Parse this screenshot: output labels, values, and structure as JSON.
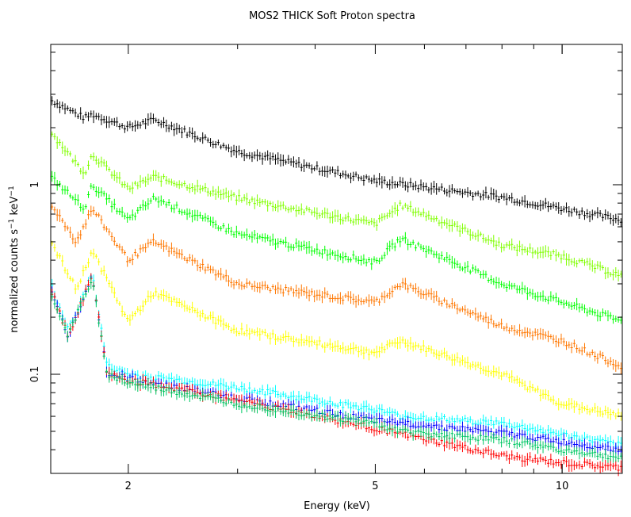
{
  "chart_data": {
    "type": "scatter",
    "title": "MOS2 THICK Soft Proton spectra",
    "xlabel": "Energy (keV)",
    "ylabel": "normalized counts s",
    "ylabel_sup1": "−1",
    "ylabel_mid": " keV",
    "ylabel_sup2": "−1",
    "x_scale": "log",
    "y_scale": "log",
    "xlim": [
      1.5,
      12.5
    ],
    "ylim": [
      0.03,
      5.5
    ],
    "x_ticks": [
      2,
      5,
      10
    ],
    "x_tick_labels": [
      "2",
      "5",
      "10"
    ],
    "y_ticks": [
      0.1,
      1
    ],
    "y_tick_labels": [
      "0.1",
      "1"
    ],
    "grid": false,
    "series": [
      {
        "color": "#000000",
        "x": [
          1.5,
          1.7,
          1.75,
          2.0,
          2.2,
          3.0,
          5.0,
          8.0,
          10.0,
          12.5
        ],
        "y": [
          2.8,
          2.25,
          2.35,
          2.0,
          2.2,
          1.5,
          1.05,
          0.86,
          0.75,
          0.65
        ]
      },
      {
        "color": "#80ff00",
        "x": [
          1.5,
          1.7,
          1.75,
          2.0,
          2.2,
          3.0,
          5.0,
          5.5,
          8.0,
          10.0,
          12.5
        ],
        "y": [
          1.9,
          1.15,
          1.45,
          0.95,
          1.1,
          0.85,
          0.62,
          0.78,
          0.48,
          0.42,
          0.33
        ]
      },
      {
        "color": "#00ff00",
        "x": [
          1.5,
          1.7,
          1.75,
          2.0,
          2.2,
          3.0,
          5.0,
          5.5,
          8.0,
          10.0,
          12.5
        ],
        "y": [
          1.1,
          0.75,
          1.0,
          0.65,
          0.85,
          0.55,
          0.39,
          0.52,
          0.3,
          0.24,
          0.19
        ]
      },
      {
        "color": "#ff7700",
        "x": [
          1.5,
          1.65,
          1.75,
          2.0,
          2.2,
          3.0,
          5.0,
          5.5,
          8.0,
          10.0,
          12.5
        ],
        "y": [
          0.8,
          0.5,
          0.75,
          0.4,
          0.5,
          0.3,
          0.24,
          0.3,
          0.18,
          0.15,
          0.11
        ]
      },
      {
        "color": "#ffff00",
        "x": [
          1.5,
          1.65,
          1.75,
          2.0,
          2.2,
          3.0,
          5.0,
          5.5,
          8.0,
          10.0,
          12.5
        ],
        "y": [
          0.5,
          0.28,
          0.45,
          0.19,
          0.27,
          0.17,
          0.13,
          0.15,
          0.1,
          0.07,
          0.06
        ]
      },
      {
        "color": "#00ffff",
        "x": [
          1.5,
          1.6,
          1.75,
          1.85,
          2.0,
          3.0,
          5.0,
          5.5,
          8.0,
          10.0,
          12.5
        ],
        "y": [
          0.3,
          0.17,
          0.34,
          0.11,
          0.1,
          0.085,
          0.065,
          0.06,
          0.055,
          0.048,
          0.042
        ]
      },
      {
        "color": "#0000ff",
        "x": [
          1.5,
          1.6,
          1.75,
          1.85,
          2.0,
          3.0,
          5.0,
          8.0,
          10.0,
          12.5
        ],
        "y": [
          0.28,
          0.16,
          0.33,
          0.1,
          0.095,
          0.075,
          0.057,
          0.049,
          0.044,
          0.04
        ]
      },
      {
        "color": "#ff0000",
        "x": [
          1.5,
          1.6,
          1.75,
          1.85,
          2.0,
          3.0,
          5.0,
          8.0,
          10.0,
          12.5
        ],
        "y": [
          0.28,
          0.16,
          0.33,
          0.1,
          0.093,
          0.073,
          0.052,
          0.037,
          0.034,
          0.032
        ]
      },
      {
        "color": "#00c864",
        "x": [
          1.5,
          1.6,
          1.75,
          1.85,
          2.0,
          3.0,
          5.0,
          5.5,
          8.0,
          10.0,
          12.5
        ],
        "y": [
          0.27,
          0.16,
          0.32,
          0.1,
          0.09,
          0.07,
          0.055,
          0.05,
          0.045,
          0.04,
          0.036
        ]
      }
    ]
  }
}
